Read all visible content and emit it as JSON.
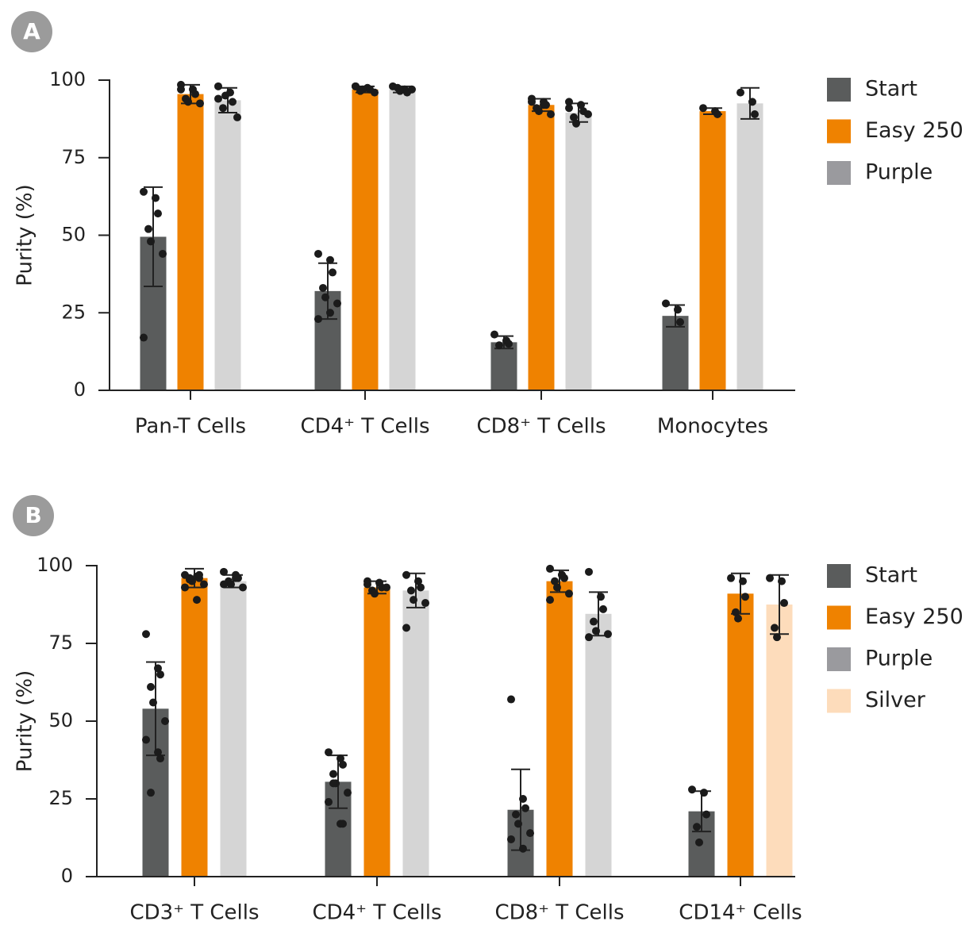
{
  "chart_data": [
    {
      "type": "bar",
      "panel": "A",
      "ylabel": "Purity (%)",
      "categories": [
        "Pan-T Cells",
        "CD4⁺ T Cells",
        "CD8⁺ T Cells",
        "Monocytes"
      ],
      "ylim": [
        0,
        100
      ],
      "yticks": [
        0,
        25,
        50,
        75,
        100
      ],
      "series": [
        {
          "name": "Start",
          "color": "#5a5c5c",
          "values": [
            49.5,
            32,
            15.5,
            24
          ],
          "errors": [
            16,
            9,
            2,
            3.5
          ],
          "points": [
            [
              64,
              62,
              57,
              52,
              48,
              44,
              17
            ],
            [
              44,
              42,
              38,
              33,
              30,
              28,
              23,
              25
            ],
            [
              18,
              16,
              15,
              14.5
            ],
            [
              28,
              26,
              22
            ]
          ]
        },
        {
          "name": "Easy 250",
          "color": "#ef8200",
          "values": [
            95.5,
            97,
            92,
            90
          ],
          "errors": [
            3,
            1,
            2,
            1
          ],
          "points": [
            [
              98.5,
              97,
              95.5,
              94,
              93,
              92.5,
              97
            ],
            [
              98,
              97.5,
              97,
              96.5,
              97,
              96,
              98
            ],
            [
              94,
              93,
              92,
              91,
              90,
              89,
              93,
              92
            ],
            [
              91,
              90,
              89
            ]
          ]
        },
        {
          "name": "Purple",
          "color": "#d5d5d5",
          "legend_color": "#9a9a9e",
          "values": [
            93.5,
            97,
            89.5,
            92.5
          ],
          "errors": [
            4,
            1,
            3,
            5
          ],
          "points": [
            [
              98,
              96,
              93,
              91,
              95,
              88,
              94
            ],
            [
              98,
              97,
              96,
              97.5,
              96.5,
              97
            ],
            [
              93,
              92,
              90,
              88,
              86,
              89,
              91
            ],
            [
              96,
              93,
              89
            ]
          ]
        }
      ]
    },
    {
      "type": "bar",
      "panel": "B",
      "ylabel": "Purity (%)",
      "categories": [
        "CD3⁺ T Cells",
        "CD4⁺ T Cells",
        "CD8⁺ T Cells",
        "CD14⁺ Cells"
      ],
      "ylim": [
        0,
        100
      ],
      "yticks": [
        0,
        25,
        50,
        75,
        100
      ],
      "series": [
        {
          "name": "Start",
          "color": "#5a5c5c",
          "values": [
            54,
            30.5,
            21.5,
            21
          ],
          "errors": [
            15,
            8.5,
            13,
            6.5
          ],
          "points": [
            [
              78,
              67,
              65,
              61,
              56,
              50,
              44,
              40,
              38,
              27
            ],
            [
              40,
              38,
              36,
              33,
              30,
              27,
              24,
              17,
              17,
              30
            ],
            [
              57,
              25,
              22,
              20,
              17,
              14,
              12,
              9
            ],
            [
              28,
              27,
              20,
              16,
              11
            ]
          ]
        },
        {
          "name": "Easy 250",
          "color": "#ef8200",
          "values": [
            96,
            93,
            95,
            91
          ],
          "errors": [
            3,
            2,
            3.5,
            6.5
          ],
          "points": [
            [
              97,
              96.5,
              96,
              95.5,
              95,
              94,
              93,
              89,
              97,
              96
            ],
            [
              95,
              94.5,
              93,
              92,
              91,
              93,
              94
            ],
            [
              99,
              97,
              96,
              95,
              93,
              91,
              89,
              97
            ],
            [
              96,
              95,
              90,
              85,
              83
            ]
          ]
        },
        {
          "name": "Purple",
          "color": "#d5d5d5",
          "legend_color": "#9a9a9e",
          "values": [
            95,
            92,
            84.5,
            null
          ],
          "errors": [
            2,
            5.5,
            7,
            null
          ],
          "points": [
            [
              98,
              97,
              96,
              95,
              94,
              93,
              94,
              96
            ],
            [
              97,
              95,
              93,
              92,
              89,
              88,
              80
            ],
            [
              98,
              90,
              86,
              82,
              79,
              78,
              77
            ],
            null
          ]
        },
        {
          "name": "Silver",
          "color": "#fddcbb",
          "values": [
            null,
            null,
            null,
            87.5
          ],
          "errors": [
            null,
            null,
            null,
            9.5
          ],
          "points": [
            null,
            null,
            null,
            [
              96,
              95,
              88,
              80,
              77
            ]
          ]
        }
      ]
    }
  ]
}
